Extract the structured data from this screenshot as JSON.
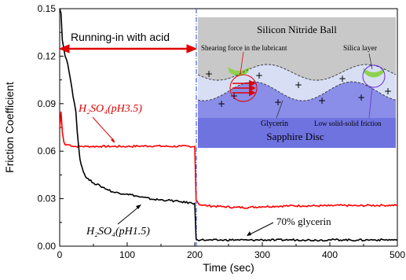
{
  "chart_data": {
    "type": "line",
    "xlabel": "Time (sec)",
    "ylabel": "Friction Coefficient",
    "xlim": [
      0,
      500
    ],
    "ylim": [
      0.0,
      0.15
    ],
    "x_ticks": [
      "0",
      "100",
      "200",
      "300",
      "400",
      "500"
    ],
    "y_ticks": [
      "0.00",
      "0.03",
      "0.06",
      "0.09",
      "0.12",
      "0.15"
    ],
    "series": [
      {
        "name": "H2SO4 (pH3.5)",
        "color": "#ff0000",
        "x": [
          0,
          2,
          4,
          6,
          8,
          10,
          15,
          20,
          30,
          40,
          60,
          80,
          100,
          120,
          140,
          160,
          180,
          200,
          202,
          204,
          206,
          210,
          220,
          240,
          260,
          280,
          300,
          320,
          340,
          360,
          380,
          400,
          420,
          440,
          460,
          480,
          500
        ],
        "y": [
          0.074,
          0.085,
          0.072,
          0.066,
          0.064,
          0.064,
          0.064,
          0.063,
          0.063,
          0.063,
          0.063,
          0.063,
          0.063,
          0.0632,
          0.0633,
          0.063,
          0.0631,
          0.063,
          0.029,
          0.028,
          0.0265,
          0.026,
          0.0255,
          0.025,
          0.0245,
          0.0245,
          0.025,
          0.0252,
          0.0255,
          0.0255,
          0.0255,
          0.0255,
          0.0258,
          0.0255,
          0.0258,
          0.0258,
          0.0258
        ]
      },
      {
        "name": "H2SO4 (pH1.5)",
        "color": "#000000",
        "x": [
          0,
          2,
          4,
          6,
          8,
          10,
          12,
          14,
          16,
          18,
          20,
          22,
          24,
          26,
          28,
          30,
          35,
          40,
          50,
          60,
          80,
          100,
          120,
          140,
          160,
          180,
          200,
          202,
          204,
          210,
          220,
          240,
          260,
          280,
          300,
          320,
          340,
          360,
          380,
          400,
          420,
          440,
          460,
          480,
          500
        ],
        "y": [
          0.15,
          0.147,
          0.13,
          0.125,
          0.12,
          0.118,
          0.115,
          0.11,
          0.105,
          0.1,
          0.094,
          0.09,
          0.085,
          0.072,
          0.063,
          0.055,
          0.047,
          0.043,
          0.04,
          0.038,
          0.034,
          0.033,
          0.031,
          0.0295,
          0.029,
          0.028,
          0.027,
          0.0045,
          0.004,
          0.004,
          0.0038,
          0.0038,
          0.004,
          0.0038,
          0.004,
          0.0038,
          0.004,
          0.004,
          0.0038,
          0.004,
          0.004,
          0.0038,
          0.004,
          0.004,
          0.004
        ]
      }
    ],
    "vline_x": 200,
    "annotations": {
      "running_in": "Running-in with acid",
      "label_ph35": "H₂SO₄(pH3.5)",
      "label_ph15": "H₂SO₄(pH1.5)",
      "label_glycerin": "70% glycerin"
    },
    "inset": {
      "ball_label": "Silicon Nitride Ball",
      "shear_label": "Shearing force in the lubricant",
      "silica_label": "Silica layer",
      "glycerin_label": "Glycerin",
      "low_friction_label": "Low solid-solid friction",
      "disc_label": "Sapphire Disc",
      "ball_color": "#c8c8c8",
      "glycerin_color": "#d8dff5",
      "disc_color": "#6b6fe0",
      "silica_color": "#8fd14f"
    },
    "grid": false,
    "legend": "none"
  }
}
